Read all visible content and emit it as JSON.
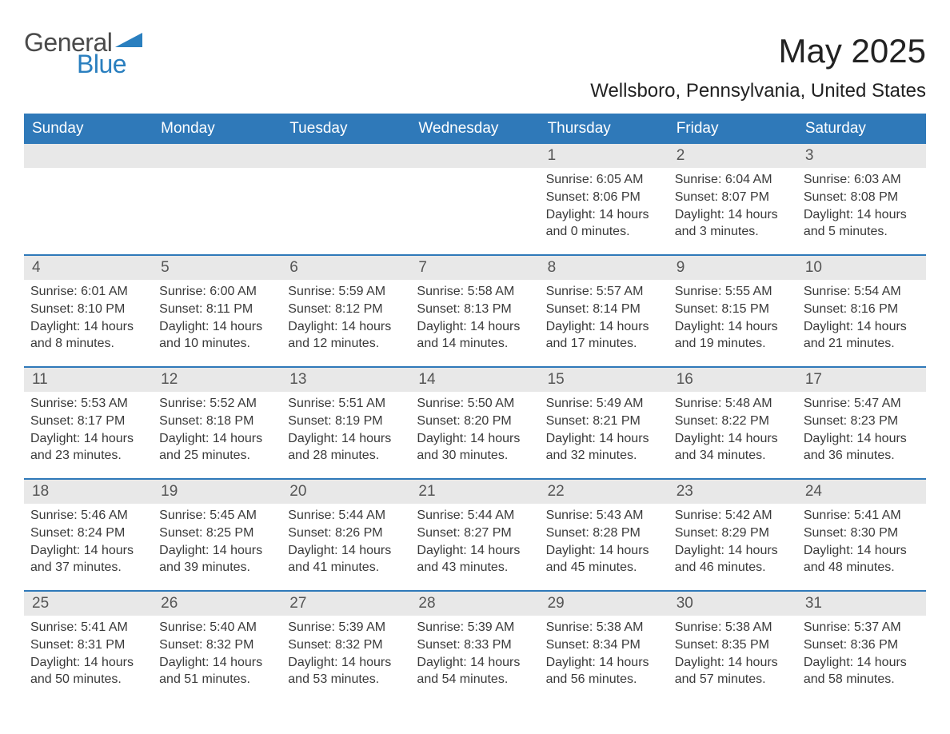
{
  "brand": {
    "general": "General",
    "blue": "Blue",
    "accent_color": "#2a7fbf"
  },
  "header": {
    "title": "May 2025",
    "location": "Wellsboro, Pennsylvania, United States"
  },
  "colors": {
    "header_bg": "#2f79b9",
    "header_text": "#ffffff",
    "daynum_bg": "#e8e8e8",
    "daynum_text": "#555555",
    "body_text": "#3a3a3a",
    "week_divider": "#2f79b9",
    "page_bg": "#ffffff"
  },
  "weekdays": [
    "Sunday",
    "Monday",
    "Tuesday",
    "Wednesday",
    "Thursday",
    "Friday",
    "Saturday"
  ],
  "weeks": [
    [
      {
        "day": "",
        "sunrise": "",
        "sunset": "",
        "daylight": ""
      },
      {
        "day": "",
        "sunrise": "",
        "sunset": "",
        "daylight": ""
      },
      {
        "day": "",
        "sunrise": "",
        "sunset": "",
        "daylight": ""
      },
      {
        "day": "",
        "sunrise": "",
        "sunset": "",
        "daylight": ""
      },
      {
        "day": "1",
        "sunrise": "Sunrise: 6:05 AM",
        "sunset": "Sunset: 8:06 PM",
        "daylight": "Daylight: 14 hours and 0 minutes."
      },
      {
        "day": "2",
        "sunrise": "Sunrise: 6:04 AM",
        "sunset": "Sunset: 8:07 PM",
        "daylight": "Daylight: 14 hours and 3 minutes."
      },
      {
        "day": "3",
        "sunrise": "Sunrise: 6:03 AM",
        "sunset": "Sunset: 8:08 PM",
        "daylight": "Daylight: 14 hours and 5 minutes."
      }
    ],
    [
      {
        "day": "4",
        "sunrise": "Sunrise: 6:01 AM",
        "sunset": "Sunset: 8:10 PM",
        "daylight": "Daylight: 14 hours and 8 minutes."
      },
      {
        "day": "5",
        "sunrise": "Sunrise: 6:00 AM",
        "sunset": "Sunset: 8:11 PM",
        "daylight": "Daylight: 14 hours and 10 minutes."
      },
      {
        "day": "6",
        "sunrise": "Sunrise: 5:59 AM",
        "sunset": "Sunset: 8:12 PM",
        "daylight": "Daylight: 14 hours and 12 minutes."
      },
      {
        "day": "7",
        "sunrise": "Sunrise: 5:58 AM",
        "sunset": "Sunset: 8:13 PM",
        "daylight": "Daylight: 14 hours and 14 minutes."
      },
      {
        "day": "8",
        "sunrise": "Sunrise: 5:57 AM",
        "sunset": "Sunset: 8:14 PM",
        "daylight": "Daylight: 14 hours and 17 minutes."
      },
      {
        "day": "9",
        "sunrise": "Sunrise: 5:55 AM",
        "sunset": "Sunset: 8:15 PM",
        "daylight": "Daylight: 14 hours and 19 minutes."
      },
      {
        "day": "10",
        "sunrise": "Sunrise: 5:54 AM",
        "sunset": "Sunset: 8:16 PM",
        "daylight": "Daylight: 14 hours and 21 minutes."
      }
    ],
    [
      {
        "day": "11",
        "sunrise": "Sunrise: 5:53 AM",
        "sunset": "Sunset: 8:17 PM",
        "daylight": "Daylight: 14 hours and 23 minutes."
      },
      {
        "day": "12",
        "sunrise": "Sunrise: 5:52 AM",
        "sunset": "Sunset: 8:18 PM",
        "daylight": "Daylight: 14 hours and 25 minutes."
      },
      {
        "day": "13",
        "sunrise": "Sunrise: 5:51 AM",
        "sunset": "Sunset: 8:19 PM",
        "daylight": "Daylight: 14 hours and 28 minutes."
      },
      {
        "day": "14",
        "sunrise": "Sunrise: 5:50 AM",
        "sunset": "Sunset: 8:20 PM",
        "daylight": "Daylight: 14 hours and 30 minutes."
      },
      {
        "day": "15",
        "sunrise": "Sunrise: 5:49 AM",
        "sunset": "Sunset: 8:21 PM",
        "daylight": "Daylight: 14 hours and 32 minutes."
      },
      {
        "day": "16",
        "sunrise": "Sunrise: 5:48 AM",
        "sunset": "Sunset: 8:22 PM",
        "daylight": "Daylight: 14 hours and 34 minutes."
      },
      {
        "day": "17",
        "sunrise": "Sunrise: 5:47 AM",
        "sunset": "Sunset: 8:23 PM",
        "daylight": "Daylight: 14 hours and 36 minutes."
      }
    ],
    [
      {
        "day": "18",
        "sunrise": "Sunrise: 5:46 AM",
        "sunset": "Sunset: 8:24 PM",
        "daylight": "Daylight: 14 hours and 37 minutes."
      },
      {
        "day": "19",
        "sunrise": "Sunrise: 5:45 AM",
        "sunset": "Sunset: 8:25 PM",
        "daylight": "Daylight: 14 hours and 39 minutes."
      },
      {
        "day": "20",
        "sunrise": "Sunrise: 5:44 AM",
        "sunset": "Sunset: 8:26 PM",
        "daylight": "Daylight: 14 hours and 41 minutes."
      },
      {
        "day": "21",
        "sunrise": "Sunrise: 5:44 AM",
        "sunset": "Sunset: 8:27 PM",
        "daylight": "Daylight: 14 hours and 43 minutes."
      },
      {
        "day": "22",
        "sunrise": "Sunrise: 5:43 AM",
        "sunset": "Sunset: 8:28 PM",
        "daylight": "Daylight: 14 hours and 45 minutes."
      },
      {
        "day": "23",
        "sunrise": "Sunrise: 5:42 AM",
        "sunset": "Sunset: 8:29 PM",
        "daylight": "Daylight: 14 hours and 46 minutes."
      },
      {
        "day": "24",
        "sunrise": "Sunrise: 5:41 AM",
        "sunset": "Sunset: 8:30 PM",
        "daylight": "Daylight: 14 hours and 48 minutes."
      }
    ],
    [
      {
        "day": "25",
        "sunrise": "Sunrise: 5:41 AM",
        "sunset": "Sunset: 8:31 PM",
        "daylight": "Daylight: 14 hours and 50 minutes."
      },
      {
        "day": "26",
        "sunrise": "Sunrise: 5:40 AM",
        "sunset": "Sunset: 8:32 PM",
        "daylight": "Daylight: 14 hours and 51 minutes."
      },
      {
        "day": "27",
        "sunrise": "Sunrise: 5:39 AM",
        "sunset": "Sunset: 8:32 PM",
        "daylight": "Daylight: 14 hours and 53 minutes."
      },
      {
        "day": "28",
        "sunrise": "Sunrise: 5:39 AM",
        "sunset": "Sunset: 8:33 PM",
        "daylight": "Daylight: 14 hours and 54 minutes."
      },
      {
        "day": "29",
        "sunrise": "Sunrise: 5:38 AM",
        "sunset": "Sunset: 8:34 PM",
        "daylight": "Daylight: 14 hours and 56 minutes."
      },
      {
        "day": "30",
        "sunrise": "Sunrise: 5:38 AM",
        "sunset": "Sunset: 8:35 PM",
        "daylight": "Daylight: 14 hours and 57 minutes."
      },
      {
        "day": "31",
        "sunrise": "Sunrise: 5:37 AM",
        "sunset": "Sunset: 8:36 PM",
        "daylight": "Daylight: 14 hours and 58 minutes."
      }
    ]
  ]
}
